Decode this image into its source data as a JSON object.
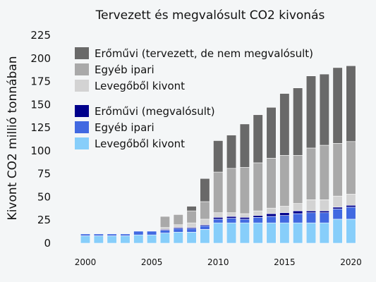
{
  "chart_data": {
    "type": "bar",
    "stacked": true,
    "title": "Tervezett és megvalósult CO2 kivonás",
    "ylabel": "Kivont CO2 millió tonnában",
    "xlabel": "",
    "ylim": [
      0,
      225
    ],
    "yticks": [
      0,
      25,
      50,
      75,
      100,
      125,
      150,
      175,
      200,
      225
    ],
    "xtick_labels": [
      "2000",
      "2005",
      "2010",
      "2015",
      "2020"
    ],
    "grid": false,
    "legend_position": "top-left",
    "categories": [
      "2000",
      "2001",
      "2002",
      "2003",
      "2004",
      "2005",
      "2006",
      "2007",
      "2008",
      "2009",
      "2010",
      "2011",
      "2012",
      "2013",
      "2014",
      "2015",
      "2016",
      "2017",
      "2018",
      "2019",
      "2020"
    ],
    "series": [
      {
        "name": "Levegőből kivont",
        "color": "#87cefa",
        "values": [
          8,
          8,
          8,
          8,
          9,
          9,
          11,
          12,
          12,
          15,
          22,
          22,
          22,
          22,
          22,
          22,
          22,
          22,
          22,
          26,
          26
        ]
      },
      {
        "name": "Egyéb ipari",
        "color": "#4169e1",
        "values": [
          2,
          2,
          2,
          2,
          4,
          4,
          3,
          4,
          4,
          4,
          4,
          5,
          4,
          6,
          7,
          8,
          10,
          11,
          11,
          11,
          13
        ]
      },
      {
        "name": "Erőművi (megvalósult)",
        "color": "#00008b",
        "values": [
          0,
          0,
          0,
          0,
          0,
          0,
          1,
          1,
          1,
          1,
          2,
          2,
          2,
          2,
          3,
          3,
          3,
          2,
          2,
          2,
          2
        ]
      },
      {
        "name": "Levegőből kivont",
        "color": "#d3d3d3",
        "values": [
          0,
          0,
          0,
          0,
          0,
          0,
          2,
          3,
          5,
          6,
          5,
          4,
          4,
          5,
          6,
          7,
          8,
          12,
          12,
          12,
          12
        ]
      },
      {
        "name": "Egyéb ipari",
        "color": "#a9a9a9",
        "values": [
          0,
          0,
          0,
          0,
          0,
          0,
          12,
          11,
          13,
          19,
          44,
          48,
          50,
          52,
          54,
          55,
          52,
          56,
          59,
          57,
          57
        ]
      },
      {
        "name": "Erőművi (tervezett, de nem megvalósult)",
        "color": "#696969",
        "values": [
          0,
          0,
          0,
          0,
          0,
          0,
          0,
          0,
          5,
          25,
          34,
          36,
          47,
          52,
          55,
          67,
          73,
          78,
          77,
          82,
          82
        ]
      }
    ],
    "legend_groups": [
      [
        "Erőművi (tervezett, de nem megvalósult)",
        "Egyéb ipari",
        "Levegőből kivont"
      ],
      [
        "Erőművi (megvalósult)",
        "Egyéb ipari",
        "Levegőből kivont"
      ]
    ]
  }
}
